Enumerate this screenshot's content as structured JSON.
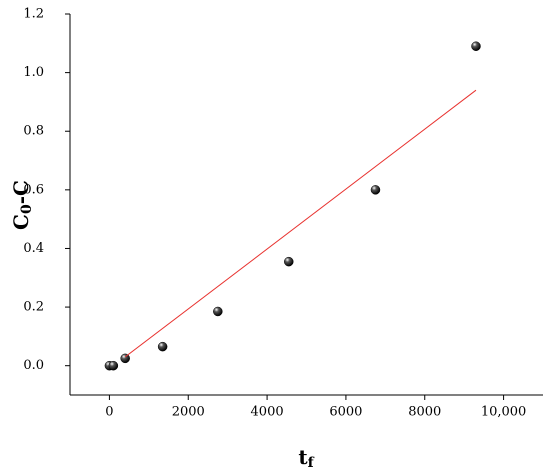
{
  "chart_data": {
    "type": "scatter",
    "xlabel": [
      "t",
      "f"
    ],
    "ylabel": [
      "C",
      "0",
      "-C"
    ],
    "xlim": [
      -1000,
      11000
    ],
    "ylim": [
      -0.1,
      1.2
    ],
    "xticks": [
      0,
      2000,
      4000,
      6000,
      8000,
      {
        "value": 10000,
        "label": "10,000"
      }
    ],
    "yticks": [
      {
        "value": 0,
        "label": "0.0"
      },
      0.2,
      0.4,
      0.6,
      0.8,
      {
        "value": 1,
        "label": "1.0"
      },
      1.2
    ],
    "series": [
      {
        "kind": "points",
        "color": "#000000",
        "x": [
          0,
          100,
          400,
          1350,
          2750,
          4550,
          6750,
          9300
        ],
        "values": [
          0,
          0,
          0.025,
          0.065,
          0.185,
          0.355,
          0.6,
          1.09
        ]
      },
      {
        "kind": "line",
        "color": "#e8322f",
        "x": [
          400,
          9300
        ],
        "values": [
          0.03,
          0.94
        ]
      }
    ]
  }
}
